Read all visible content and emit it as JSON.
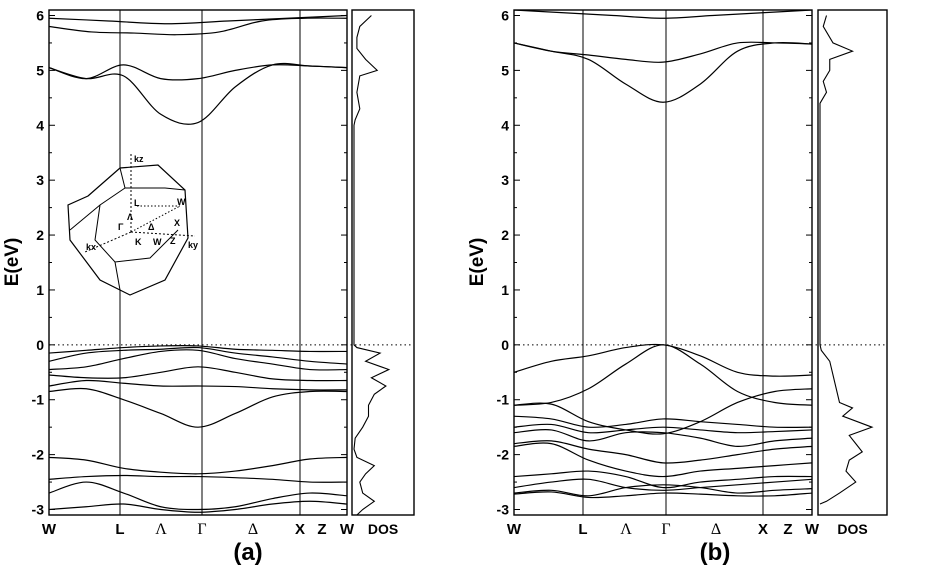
{
  "chart_data": [
    {
      "type": "line",
      "panel": "(a)",
      "ylabel": "E(eV)",
      "ylim": [
        -3.1,
        6.1
      ],
      "yticks": [
        "-3",
        "-2",
        "-1",
        "0",
        "1",
        "2",
        "3",
        "4",
        "5",
        "6"
      ],
      "k_points": [
        "W",
        "L",
        "Λ",
        "Γ",
        "Δ",
        "X",
        "Z",
        "W"
      ],
      "fermi_level": 0,
      "dos_label": "DOS",
      "inset_labels": [
        "kz",
        "L",
        "W",
        "Λ",
        "Γ",
        "Δ",
        "X",
        "K",
        "W",
        "Z",
        "kx",
        "ky"
      ],
      "series": [
        {
          "values": [
            5.95,
            5.9,
            5.85,
            5.9,
            5.95,
            6.0
          ]
        },
        {
          "values": [
            5.8,
            5.7,
            5.68,
            5.65,
            5.7,
            5.9,
            5.95,
            5.95
          ]
        },
        {
          "values": [
            5.05,
            4.85,
            4.9,
            4.2,
            4.05,
            4.7,
            5.1,
            5.08,
            5.05
          ]
        },
        {
          "values": [
            5.05,
            4.85,
            5.1,
            4.85,
            4.85,
            5.0,
            5.1,
            5.08,
            5.05
          ]
        },
        {
          "values": [
            -0.15,
            -0.1,
            -0.05,
            -0.02,
            -0.02,
            -0.08,
            -0.1,
            -0.12,
            -0.12
          ]
        },
        {
          "values": [
            -0.3,
            -0.15,
            -0.1,
            -0.08,
            -0.05,
            -0.15,
            -0.22,
            -0.3,
            -0.35
          ]
        },
        {
          "values": [
            -0.45,
            -0.4,
            -0.25,
            -0.12,
            -0.1,
            -0.25,
            -0.35,
            -0.45,
            -0.45
          ]
        },
        {
          "values": [
            -0.55,
            -0.6,
            -0.6,
            -0.5,
            -0.4,
            -0.5,
            -0.62,
            -0.65,
            -0.65
          ]
        },
        {
          "values": [
            -0.75,
            -0.65,
            -0.7,
            -0.75,
            -0.75,
            -0.76,
            -0.8,
            -0.82,
            -0.82
          ]
        },
        {
          "values": [
            -0.85,
            -0.8,
            -1.0,
            -1.25,
            -1.5,
            -1.25,
            -0.95,
            -0.85,
            -0.85
          ]
        },
        {
          "values": [
            -2.05,
            -2.1,
            -2.25,
            -2.32,
            -2.35,
            -2.3,
            -2.2,
            -2.08,
            -2.05
          ]
        },
        {
          "values": [
            -2.45,
            -2.4,
            -2.38,
            -2.4,
            -2.4,
            -2.42,
            -2.45,
            -2.5,
            -2.5
          ]
        },
        {
          "values": [
            -2.7,
            -2.5,
            -2.7,
            -2.95,
            -3.0,
            -2.95,
            -2.8,
            -2.7,
            -2.75
          ]
        },
        {
          "values": [
            -3.0,
            -2.95,
            -2.9,
            -3.0,
            -3.05,
            -3.0,
            -2.9,
            -2.85,
            -2.9
          ]
        }
      ]
    },
    {
      "type": "line",
      "panel": "(b)",
      "ylabel": "E(eV)",
      "ylim": [
        -3.1,
        6.1
      ],
      "yticks": [
        "-3",
        "-2",
        "-1",
        "0",
        "1",
        "2",
        "3",
        "4",
        "5",
        "6"
      ],
      "k_points": [
        "W",
        "L",
        "Λ",
        "Γ",
        "Δ",
        "X",
        "Z",
        "W"
      ],
      "fermi_level": 0,
      "dos_label": "DOS",
      "series": [
        {
          "values": [
            5.5,
            5.35,
            5.2,
            4.75,
            4.42,
            4.75,
            5.35,
            5.5,
            5.48
          ]
        },
        {
          "values": [
            5.5,
            5.35,
            5.28,
            5.2,
            5.15,
            5.3,
            5.5,
            5.5,
            5.48
          ]
        },
        {
          "values": [
            6.1,
            6.05,
            6.0,
            5.95,
            6.0,
            6.05,
            6.1
          ]
        },
        {
          "values": [
            -0.5,
            -0.3,
            -0.2,
            -0.05,
            0.0,
            -0.2,
            -0.5,
            -0.57,
            -0.55
          ]
        },
        {
          "values": [
            -1.1,
            -1.05,
            -0.8,
            -0.35,
            0.0,
            -0.35,
            -0.85,
            -1.05,
            -1.1
          ]
        },
        {
          "values": [
            -1.1,
            -1.08,
            -1.4,
            -1.55,
            -1.62,
            -1.4,
            -1.05,
            -0.85,
            -0.8
          ]
        },
        {
          "values": [
            -1.3,
            -1.35,
            -1.5,
            -1.45,
            -1.35,
            -1.4,
            -1.45,
            -1.5,
            -1.5
          ]
        },
        {
          "values": [
            -1.5,
            -1.45,
            -1.6,
            -1.55,
            -1.5,
            -1.55,
            -1.6,
            -1.58,
            -1.55
          ]
        },
        {
          "values": [
            -1.6,
            -1.55,
            -1.75,
            -1.6,
            -1.6,
            -1.7,
            -1.85,
            -1.75,
            -1.7
          ]
        },
        {
          "values": [
            -1.8,
            -1.75,
            -1.9,
            -2.0,
            -2.15,
            -2.1,
            -2.0,
            -1.9,
            -1.85
          ]
        },
        {
          "values": [
            -1.85,
            -1.8,
            -2.1,
            -2.3,
            -2.4,
            -2.3,
            -2.25,
            -2.2,
            -2.15
          ]
        },
        {
          "values": [
            -2.4,
            -2.35,
            -2.3,
            -2.4,
            -2.6,
            -2.5,
            -2.45,
            -2.4,
            -2.4
          ]
        },
        {
          "values": [
            -2.6,
            -2.5,
            -2.45,
            -2.6,
            -2.65,
            -2.6,
            -2.55,
            -2.5,
            -2.45
          ]
        },
        {
          "values": [
            -2.7,
            -2.65,
            -2.75,
            -2.6,
            -2.55,
            -2.6,
            -2.7,
            -2.65,
            -2.62
          ]
        },
        {
          "values": [
            -2.72,
            -2.68,
            -2.78,
            -2.75,
            -2.7,
            -2.72,
            -2.75,
            -2.75,
            -2.7
          ]
        }
      ]
    }
  ]
}
